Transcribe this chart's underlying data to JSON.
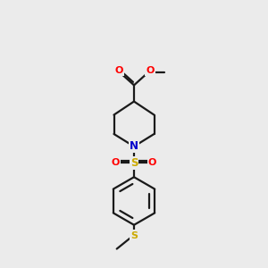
{
  "bg_color": "#EBEBEB",
  "bond_color": "#1a1a1a",
  "bond_width": 1.6,
  "atom_colors": {
    "O": "#FF0000",
    "N": "#0000CC",
    "S_sulfonyl": "#CCAA00",
    "S_thioether": "#CCAA00",
    "C": "#1a1a1a"
  },
  "xlim": [
    0,
    10
  ],
  "ylim": [
    0,
    14
  ],
  "fig_width": 3.0,
  "fig_height": 3.0,
  "dpi": 100
}
